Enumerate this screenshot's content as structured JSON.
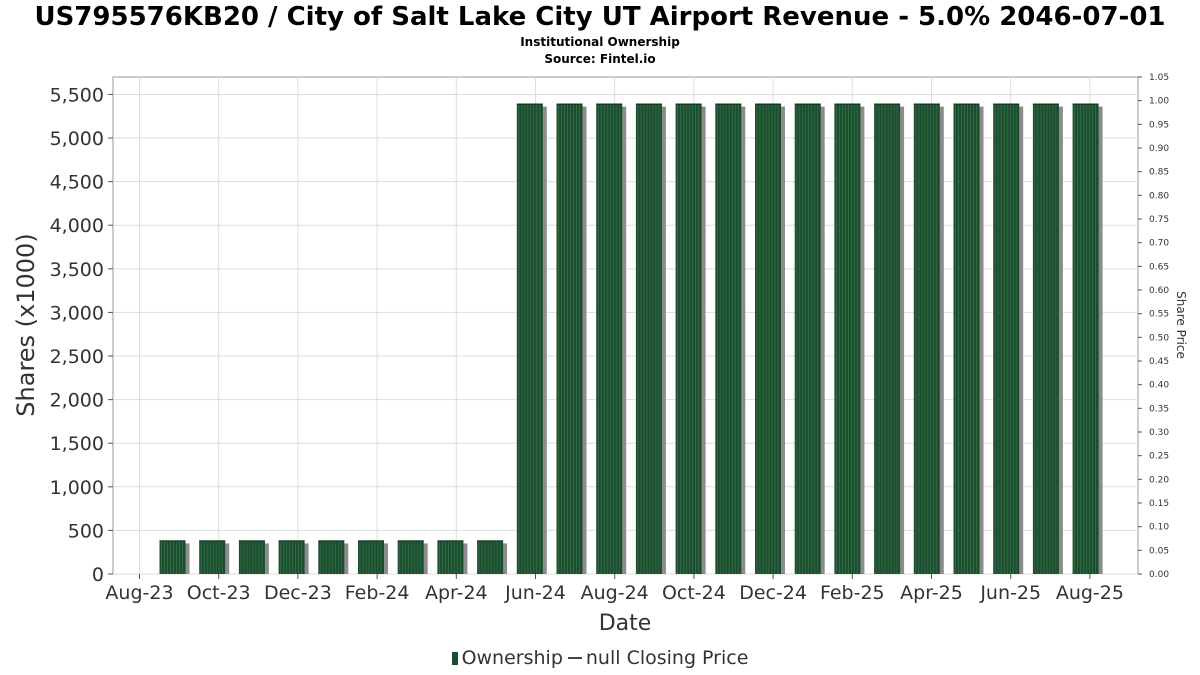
{
  "header": {
    "title": "US795576KB20 / City of Salt Lake City UT Airport Revenue - 5.0% 2046-07-01",
    "subtitle": "Institutional Ownership",
    "source": "Source: Fintel.io"
  },
  "legend": {
    "ownership_label": "Ownership",
    "price_label": "null Closing Price"
  },
  "colors": {
    "bar": "#1b4d2e",
    "bar_shadow": "#8c8c8c",
    "grid": "#dddddd"
  },
  "chart_data": {
    "type": "bar",
    "xlabel": "Date",
    "ylabel": "Shares (x1000)",
    "y2label": "Share Price",
    "ylim": [
      0,
      5700
    ],
    "y2lim": [
      0,
      1.05
    ],
    "y_ticks": [
      0,
      500,
      1000,
      1500,
      2000,
      2500,
      3000,
      3500,
      4000,
      4500,
      5000,
      5500
    ],
    "y_tick_labels": [
      "0",
      "500",
      "1,000",
      "1,500",
      "2,000",
      "2,500",
      "3,000",
      "3,500",
      "4,000",
      "4,500",
      "5,000",
      "5,500"
    ],
    "y2_ticks": [
      "0.00",
      "0.05",
      "0.10",
      "0.15",
      "0.20",
      "0.25",
      "0.30",
      "0.35",
      "0.40",
      "0.45",
      "0.50",
      "0.55",
      "0.60",
      "0.65",
      "0.70",
      "0.75",
      "0.80",
      "0.85",
      "0.90",
      "0.95",
      "1.00",
      "1.05"
    ],
    "x_tick_labels": [
      "Aug-23",
      "Oct-23",
      "Dec-23",
      "Feb-24",
      "Apr-24",
      "Jun-24",
      "Aug-24",
      "Oct-24",
      "Dec-24",
      "Feb-25",
      "Apr-25",
      "Jun-25",
      "Aug-25"
    ],
    "grid": true,
    "legend_position": "bottom",
    "categories": [
      "2023-09",
      "2023-10",
      "2023-11",
      "2023-12",
      "2024-01",
      "2024-02",
      "2024-03",
      "2024-04",
      "2024-05",
      "2024-06",
      "2024-07",
      "2024-08",
      "2024-09",
      "2024-10",
      "2024-11",
      "2024-12",
      "2025-01",
      "2025-02",
      "2025-03",
      "2025-04",
      "2025-05",
      "2025-06",
      "2025-07",
      "2025-08"
    ],
    "values": [
      385,
      385,
      385,
      385,
      385,
      385,
      385,
      385,
      385,
      5395,
      5395,
      5395,
      5395,
      5395,
      5395,
      5395,
      5395,
      5395,
      5395,
      5395,
      5395,
      5395,
      5395,
      5395
    ]
  }
}
